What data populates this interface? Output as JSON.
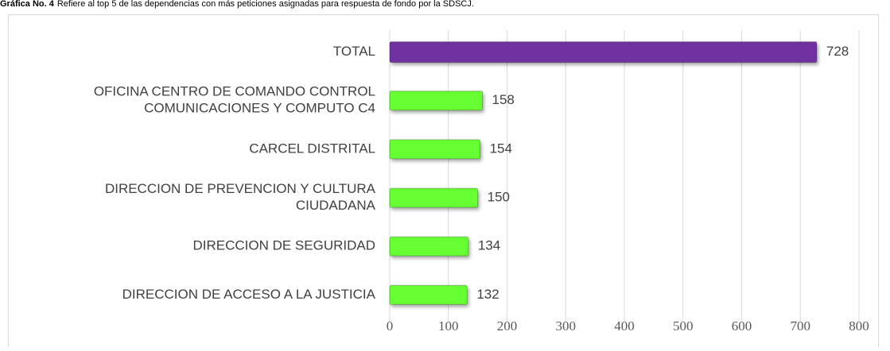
{
  "chart_data": {
    "type": "bar",
    "orientation": "horizontal",
    "title": "Gráfica No. 4",
    "subtitle": "Refiere al top 5 de las dependencias con más peticiones asignadas para respuesta de fondo por la SDSCJ.",
    "categories": [
      [
        "TOTAL"
      ],
      [
        "OFICINA CENTRO DE COMANDO CONTROL",
        "COMUNICACIONES Y COMPUTO C4"
      ],
      [
        "CARCEL DISTRITAL"
      ],
      [
        "DIRECCION DE PREVENCION Y CULTURA",
        "CIUDADANA"
      ],
      [
        "DIRECCION DE SEGURIDAD"
      ],
      [
        "DIRECCION DE ACCESO A LA JUSTICIA"
      ]
    ],
    "values": [
      728,
      158,
      154,
      150,
      134,
      132
    ],
    "colors": [
      "#7030a0",
      "#66ff33",
      "#66ff33",
      "#66ff33",
      "#66ff33",
      "#66ff33"
    ],
    "xlim": [
      0,
      800
    ],
    "xticks": [
      0,
      100,
      200,
      300,
      400,
      500,
      600,
      700,
      800
    ],
    "grid": true
  }
}
